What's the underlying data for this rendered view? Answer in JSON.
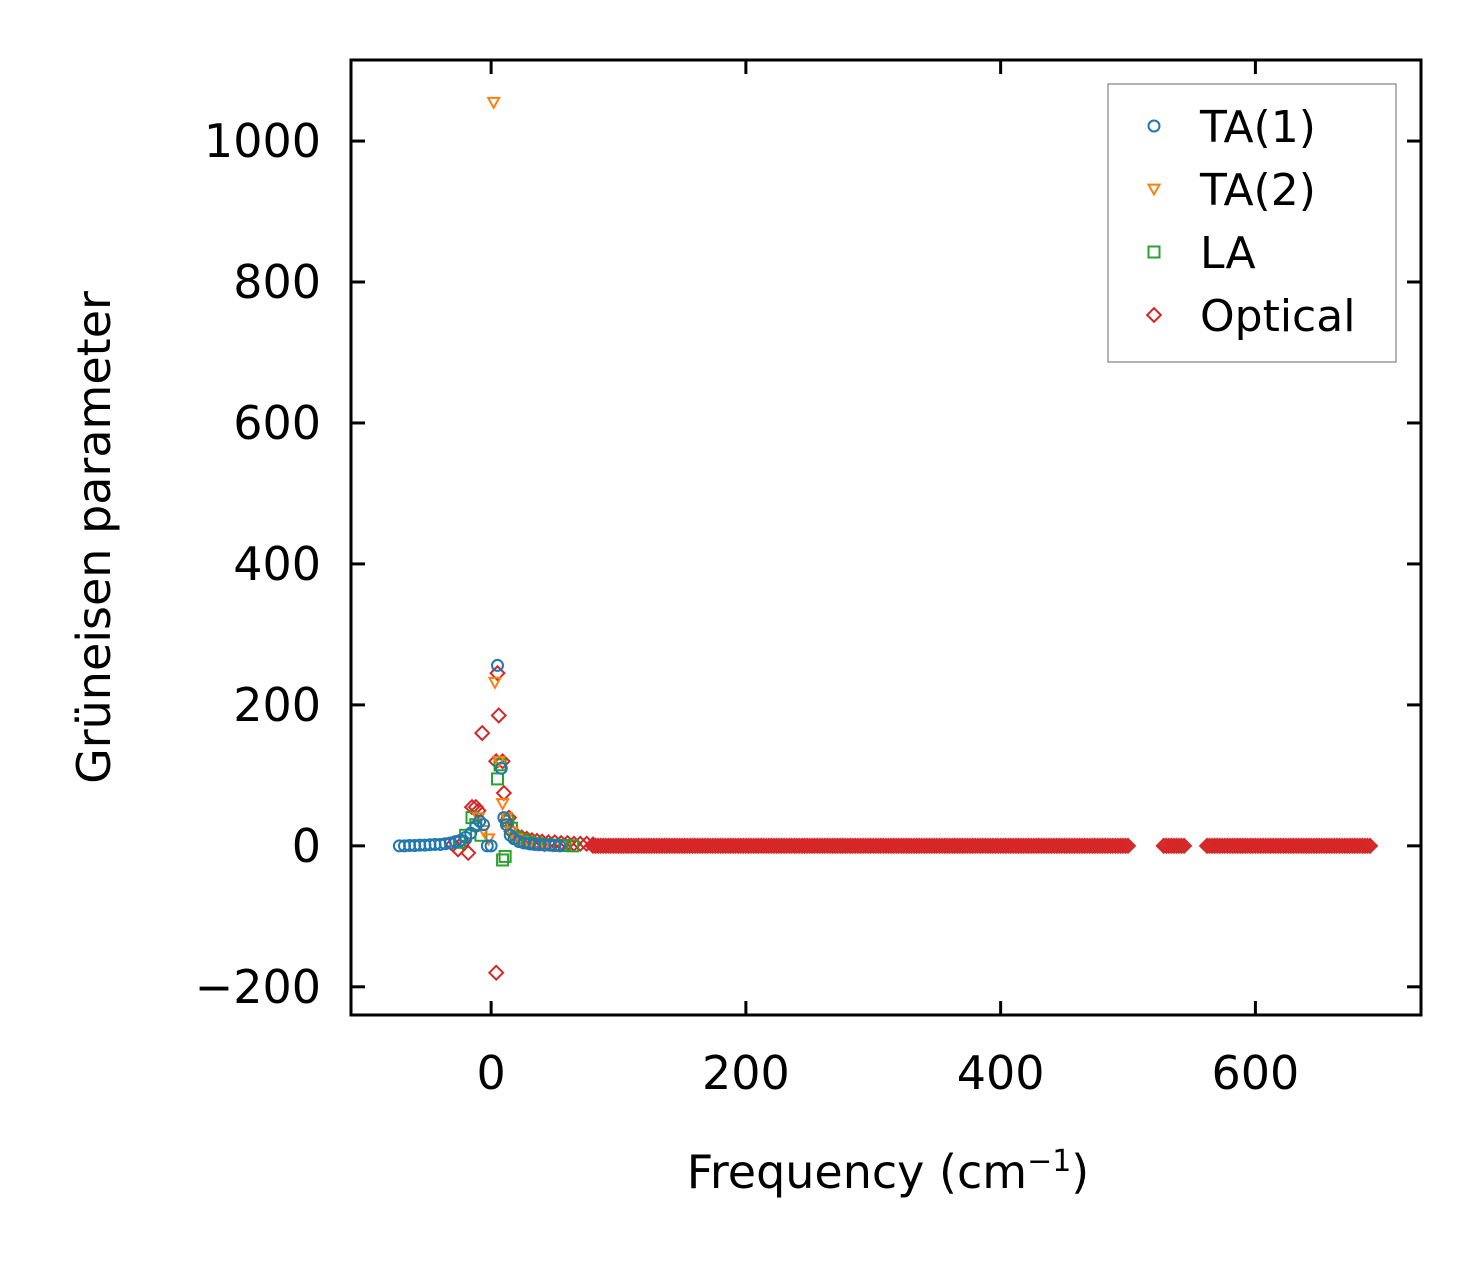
{
  "chart_data": {
    "type": "scatter",
    "title": "",
    "xlabel": "Frequency (cm",
    "xlabel_sup": "−1",
    "xlabel_close": ")",
    "ylabel": "Grüneisen parameter",
    "xlim": [
      -110,
      730
    ],
    "ylim": [
      -240,
      1115
    ],
    "xticks": [
      0,
      200,
      400,
      600
    ],
    "xtick_labels": [
      "0",
      "200",
      "400",
      "600"
    ],
    "yticks": [
      -200,
      0,
      200,
      400,
      600,
      800,
      1000
    ],
    "ytick_labels": [
      "−200",
      "0",
      "200",
      "400",
      "600",
      "800",
      "1000"
    ],
    "grid": false,
    "legend_position": "top-right",
    "series": [
      {
        "name": "TA(1)",
        "marker": "circle",
        "color": "#1f77b4",
        "points": [
          [
            -72,
            0
          ],
          [
            -68,
            0
          ],
          [
            -64,
            0.5
          ],
          [
            -60,
            0.5
          ],
          [
            -56,
            1
          ],
          [
            -52,
            1
          ],
          [
            -48,
            1.5
          ],
          [
            -44,
            2
          ],
          [
            -40,
            2
          ],
          [
            -36,
            3
          ],
          [
            -32,
            4
          ],
          [
            -28,
            6
          ],
          [
            -24,
            8
          ],
          [
            -20,
            12
          ],
          [
            -16,
            18
          ],
          [
            -12,
            28
          ],
          [
            -9,
            35
          ],
          [
            -6,
            30
          ],
          [
            -3,
            0
          ],
          [
            0,
            0
          ],
          [
            5,
            256
          ],
          [
            8,
            110
          ],
          [
            10,
            40
          ],
          [
            12,
            30
          ],
          [
            15,
            15
          ],
          [
            18,
            10
          ],
          [
            22,
            6
          ],
          [
            26,
            4
          ],
          [
            30,
            3
          ],
          [
            34,
            2
          ],
          [
            38,
            1.5
          ],
          [
            42,
            1
          ],
          [
            46,
            1
          ],
          [
            50,
            0.5
          ],
          [
            54,
            0
          ]
        ]
      },
      {
        "name": "TA(2)",
        "marker": "triangle-down",
        "color": "#ff7f0e",
        "points": [
          [
            2,
            1055
          ],
          [
            3,
            232
          ],
          [
            -10,
            40
          ],
          [
            -6,
            22
          ],
          [
            -2,
            10
          ],
          [
            6,
            120
          ],
          [
            9,
            60
          ],
          [
            12,
            40
          ],
          [
            16,
            20
          ],
          [
            20,
            10
          ],
          [
            24,
            6
          ],
          [
            30,
            3
          ],
          [
            36,
            2
          ],
          [
            42,
            1
          ],
          [
            48,
            0.5
          ]
        ]
      },
      {
        "name": "LA",
        "marker": "square",
        "color": "#2ca02c",
        "points": [
          [
            -25,
            5
          ],
          [
            -20,
            15
          ],
          [
            -15,
            40
          ],
          [
            -12,
            30
          ],
          [
            -8,
            15
          ],
          [
            5,
            95
          ],
          [
            7,
            115
          ],
          [
            9,
            -20
          ],
          [
            11,
            -15
          ],
          [
            13,
            35
          ],
          [
            16,
            25
          ],
          [
            20,
            12
          ],
          [
            25,
            8
          ],
          [
            30,
            5
          ],
          [
            36,
            3
          ],
          [
            42,
            2
          ],
          [
            50,
            1
          ],
          [
            58,
            0.5
          ],
          [
            64,
            0
          ]
        ]
      },
      {
        "name": "Optical",
        "marker": "diamond",
        "color": "#d62728",
        "points": [
          [
            -30,
            2
          ],
          [
            -26,
            -5
          ],
          [
            -22,
            5
          ],
          [
            -18,
            -10
          ],
          [
            -15,
            55
          ],
          [
            -12,
            55
          ],
          [
            -10,
            50
          ],
          [
            -7,
            160
          ],
          [
            5,
            245
          ],
          [
            6,
            185
          ],
          [
            4,
            120
          ],
          [
            9,
            120
          ],
          [
            10,
            75
          ],
          [
            12,
            35
          ],
          [
            14,
            40
          ],
          [
            16,
            20
          ],
          [
            4,
            -180
          ],
          [
            20,
            15
          ],
          [
            24,
            12
          ],
          [
            28,
            10
          ],
          [
            32,
            8
          ],
          [
            36,
            7
          ],
          [
            40,
            6
          ],
          [
            45,
            5
          ],
          [
            50,
            5
          ],
          [
            55,
            4
          ],
          [
            60,
            4
          ],
          [
            65,
            3
          ],
          [
            70,
            3
          ],
          [
            75,
            3
          ],
          [
            80,
            2
          ]
        ]
      }
    ],
    "optical_bands": [
      [
        80,
        500
      ],
      [
        528,
        545
      ],
      [
        562,
        690
      ]
    ]
  }
}
